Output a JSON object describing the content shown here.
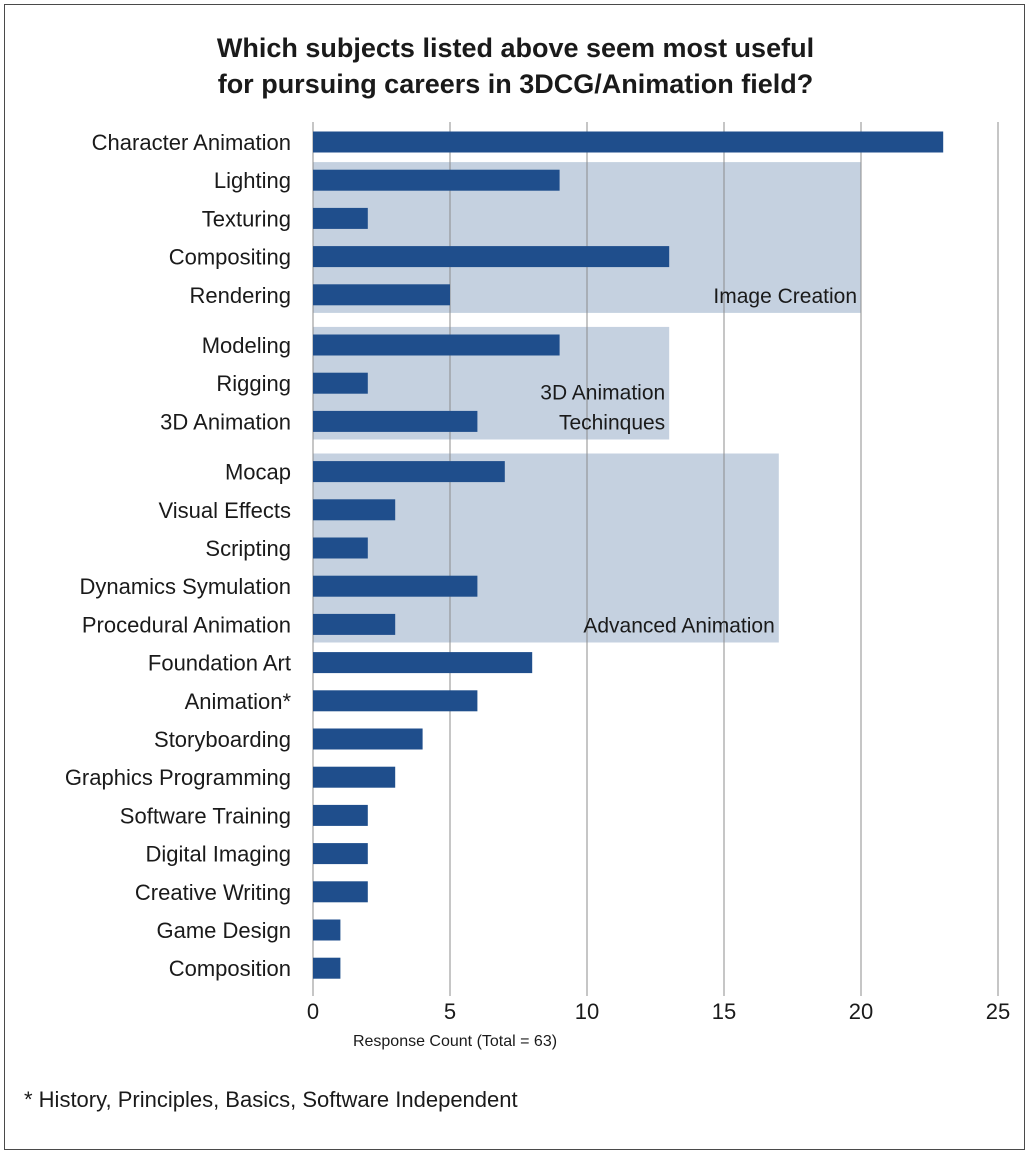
{
  "chart_data": {
    "type": "bar",
    "orientation": "horizontal",
    "title": [
      "Which subjects listed above seem most useful",
      "for pursuing careers in 3DCG/Animation field?"
    ],
    "xlabel": "Response Count (Total = 63)",
    "ylabel": "",
    "xlim": [
      0,
      25
    ],
    "xticks": [
      0,
      5,
      10,
      15,
      20,
      25
    ],
    "grid": "vertical",
    "bar_color": "#1f4e8c",
    "categories": [
      "Character Animation",
      "Lighting",
      "Texturing",
      "Compositing",
      "Rendering",
      "Modeling",
      "Rigging",
      "3D Animation",
      "Mocap",
      "Visual Effects",
      "Scripting",
      "Dynamics Symulation",
      "Procedural Animation",
      "Foundation Art",
      "Animation*",
      "Storyboarding",
      "Graphics Programming",
      "Software Training",
      "Digital Imaging",
      "Creative Writing",
      "Game Design",
      "Composition"
    ],
    "values": [
      23,
      9,
      2,
      13,
      5,
      9,
      2,
      6,
      7,
      3,
      2,
      6,
      3,
      8,
      6,
      4,
      3,
      2,
      2,
      2,
      1,
      1
    ],
    "annotations": [
      {
        "label": [
          "Image Creation"
        ],
        "from_category": "Lighting",
        "to_category": "Rendering",
        "extent": 20,
        "color": "#c5d1e0"
      },
      {
        "label": [
          "3D Animation",
          "Techinques"
        ],
        "from_category": "Modeling",
        "to_category": "3D Animation",
        "extent": 13,
        "color": "#c5d1e0"
      },
      {
        "label": [
          "Advanced Animation"
        ],
        "from_category": "Mocap",
        "to_category": "Procedural Animation",
        "extent": 17,
        "color": "#c5d1e0"
      }
    ]
  },
  "footnote": "* History, Principles, Basics, Software Independent",
  "colors": {
    "bar": "#1f4e8c",
    "region": "#c5d1e0",
    "grid": "#8c8c8c",
    "frame": "#4a4a4a"
  }
}
